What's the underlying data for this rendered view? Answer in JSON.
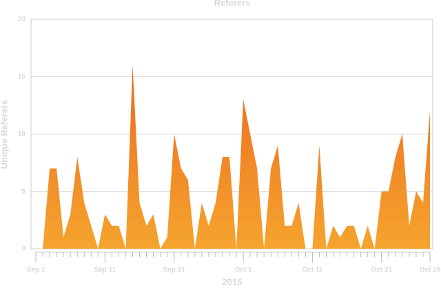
{
  "chart_data": {
    "type": "area",
    "title": "Referers",
    "y_label": "Unique Referers",
    "x_label": "2015",
    "x": [
      "2015-09-01",
      "2015-09-02",
      "2015-09-03",
      "2015-09-04",
      "2015-09-05",
      "2015-09-06",
      "2015-09-07",
      "2015-09-08",
      "2015-09-09",
      "2015-09-10",
      "2015-09-11",
      "2015-09-12",
      "2015-09-13",
      "2015-09-14",
      "2015-09-15",
      "2015-09-16",
      "2015-09-17",
      "2015-09-18",
      "2015-09-19",
      "2015-09-20",
      "2015-09-21",
      "2015-09-22",
      "2015-09-23",
      "2015-09-24",
      "2015-09-25",
      "2015-09-26",
      "2015-09-27",
      "2015-09-28",
      "2015-09-29",
      "2015-09-30",
      "2015-10-01",
      "2015-10-02",
      "2015-10-03",
      "2015-10-04",
      "2015-10-05",
      "2015-10-06",
      "2015-10-07",
      "2015-10-08",
      "2015-10-09",
      "2015-10-10",
      "2015-10-11",
      "2015-10-12",
      "2015-10-13",
      "2015-10-14",
      "2015-10-15",
      "2015-10-16",
      "2015-10-17",
      "2015-10-18",
      "2015-10-19",
      "2015-10-20",
      "2015-10-21",
      "2015-10-22",
      "2015-10-23",
      "2015-10-24",
      "2015-10-25",
      "2015-10-26",
      "2015-10-27",
      "2015-10-28"
    ],
    "values": [
      0,
      0,
      7,
      7,
      1,
      3,
      8,
      4,
      2,
      0,
      3,
      2,
      2,
      0,
      16,
      4,
      2,
      3,
      0,
      1,
      10,
      7,
      6,
      0,
      4,
      2,
      4,
      8,
      8,
      0,
      13,
      10,
      7,
      0,
      7,
      9,
      2,
      2,
      4,
      0,
      0,
      9,
      0,
      2,
      1,
      2,
      2,
      0,
      2,
      0,
      5,
      5,
      8,
      10,
      2,
      5,
      4,
      12
    ],
    "gradient": [
      "#ec6a20",
      "#f5a42e"
    ],
    "xlim": [
      "2015-09-01",
      "2015-10-28"
    ],
    "xticks": [
      {
        "value": "2015-09-01",
        "label": "Sep 1"
      },
      {
        "value": "2015-09-11",
        "label": "Sep 11"
      },
      {
        "value": "2015-09-21",
        "label": "Sep 21"
      },
      {
        "value": "2015-10-01",
        "label": "Oct 1"
      },
      {
        "value": "2015-10-11",
        "label": "Oct 11"
      },
      {
        "value": "2015-10-21",
        "label": "Oct 21"
      },
      {
        "value": "2015-10-28",
        "label": "Oct 28"
      }
    ],
    "ylim": [
      0,
      20
    ],
    "yticks": [
      0,
      5,
      10,
      15,
      20
    ],
    "grid": true
  }
}
